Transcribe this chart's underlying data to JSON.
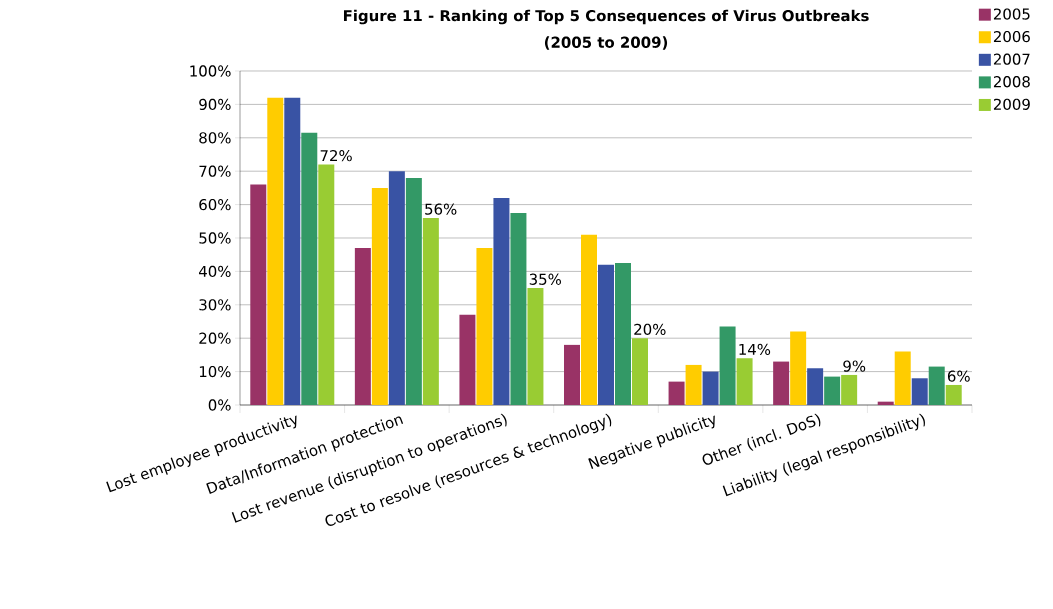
{
  "chart_data": {
    "type": "bar",
    "title": "Figure 11 - Ranking of Top 5 Consequences of Virus Outbreaks",
    "subtitle": "(2005 to 2009)",
    "categories": [
      "Lost employee productivity",
      "Data/Information protection",
      "Lost revenue (disruption to operations)",
      "Cost to resolve (resources & technology)",
      "Negative publicity",
      "Other (incl. DoS)",
      "Liability (legal responsibility)"
    ],
    "series": [
      {
        "name": "2005",
        "color": "#993366",
        "values": [
          66,
          47,
          27,
          18,
          7,
          13,
          1
        ]
      },
      {
        "name": "2006",
        "color": "#ffcc00",
        "values": [
          92,
          65,
          47,
          51,
          12,
          22,
          16
        ]
      },
      {
        "name": "2007",
        "color": "#3953a4",
        "values": [
          92,
          70,
          62,
          42,
          10,
          11,
          8
        ]
      },
      {
        "name": "2008",
        "color": "#339966",
        "values": [
          81.5,
          68,
          57.5,
          42.5,
          23.5,
          8.5,
          11.5
        ]
      },
      {
        "name": "2009",
        "color": "#99cc33",
        "values": [
          72,
          56,
          35,
          20,
          14,
          9,
          6
        ],
        "value_labels": [
          "72%",
          "56%",
          "35%",
          "20%",
          "14%",
          "9%",
          "6%"
        ]
      }
    ],
    "ylim": [
      0,
      100
    ],
    "yticks": [
      {
        "value": 0,
        "label": "0%"
      },
      {
        "value": 10,
        "label": "10%"
      },
      {
        "value": 20,
        "label": "20%"
      },
      {
        "value": 30,
        "label": "30%"
      },
      {
        "value": 40,
        "label": "40%"
      },
      {
        "value": 50,
        "label": "50%"
      },
      {
        "value": 60,
        "label": "60%"
      },
      {
        "value": 70,
        "label": "70%"
      },
      {
        "value": 80,
        "label": "80%"
      },
      {
        "value": 90,
        "label": "90%"
      },
      {
        "value": 100,
        "label": "100%"
      }
    ],
    "grid": "y",
    "legend": "top right"
  }
}
